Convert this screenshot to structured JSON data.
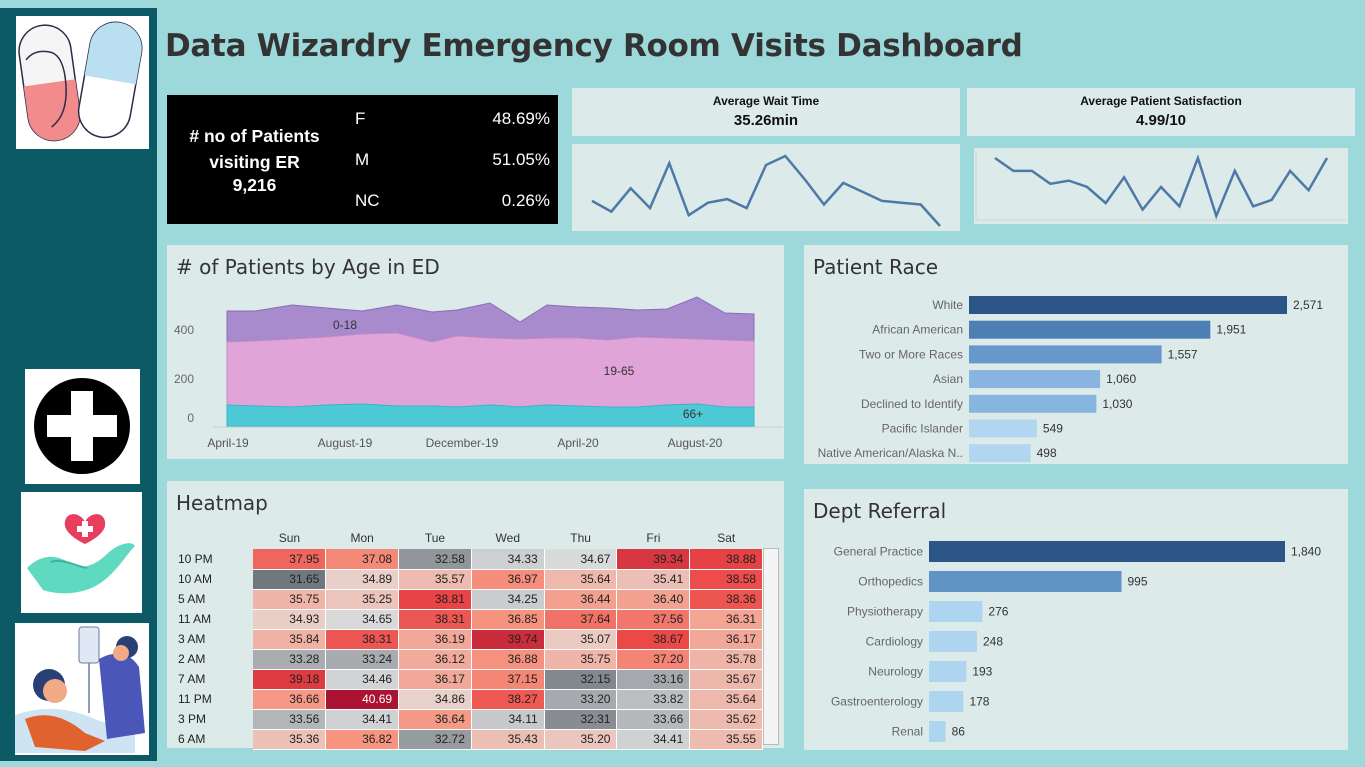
{
  "title": "Data Wizardry Emergency Room Visits Dashboard",
  "sidebar": {
    "icons": [
      "pill-capsule-icon",
      "medical-cross-icon",
      "heart-hand-icon",
      "patient-iv-icon"
    ]
  },
  "kpi": {
    "label_line1": "# no of Patients",
    "label_line2": "visiting ER",
    "value": "9,216",
    "genders": [
      {
        "code": "F",
        "pct": "48.69%"
      },
      {
        "code": "M",
        "pct": "51.05%"
      },
      {
        "code": "NC",
        "pct": "0.26%"
      }
    ]
  },
  "wait_time": {
    "label": "Average Wait Time",
    "value": "35.26min",
    "trend": [
      35.2,
      34.6,
      35.9,
      34.8,
      37.3,
      34.4,
      35.1,
      35.3,
      34.8,
      37.2,
      37.7,
      36.4,
      35.0,
      36.2,
      35.7,
      35.2,
      35.1,
      35.0,
      33.8
    ]
  },
  "satisfaction": {
    "label": "Average Patient Satisfaction",
    "value": "4.99/10",
    "trend": [
      5.3,
      5.1,
      5.1,
      4.9,
      4.95,
      4.85,
      4.6,
      5.0,
      4.5,
      4.85,
      4.55,
      5.3,
      4.4,
      5.1,
      4.55,
      4.65,
      5.1,
      4.8,
      5.3
    ]
  },
  "age_chart": {
    "title": "# of Patients by Age in ED",
    "y_ticks": [
      "400",
      "200",
      "0"
    ],
    "x_ticks": [
      "April-19",
      "August-19",
      "December-19",
      "April-20",
      "August-20"
    ],
    "series_labels": [
      "0-18",
      "19-65",
      "66+"
    ]
  },
  "race": {
    "title": "Patient Race",
    "items": [
      {
        "label": "White",
        "value": "2,571",
        "n": 2571,
        "color": "#2c5687"
      },
      {
        "label": "African American",
        "value": "1,951",
        "n": 1951,
        "color": "#4e7fb4"
      },
      {
        "label": "Two or More Races",
        "value": "1,557",
        "n": 1557,
        "color": "#6898cb"
      },
      {
        "label": "Asian",
        "value": "1,060",
        "n": 1060,
        "color": "#87b5df"
      },
      {
        "label": "Declined to Identify",
        "value": "1,030",
        "n": 1030,
        "color": "#87b5df"
      },
      {
        "label": "Pacific Islander",
        "value": "549",
        "n": 549,
        "color": "#b2d6ef"
      },
      {
        "label": "Native American/Alaska N..",
        "value": "498",
        "n": 498,
        "color": "#b2d6ef"
      }
    ]
  },
  "dept": {
    "title": "Dept Referral",
    "items": [
      {
        "label": "General Practice",
        "value": "1,840",
        "n": 1840,
        "color": "#2c5687"
      },
      {
        "label": "Orthopedics",
        "value": "995",
        "n": 995,
        "color": "#6193c6"
      },
      {
        "label": "Physiotherapy",
        "value": "276",
        "n": 276,
        "color": "#add5f0"
      },
      {
        "label": "Cardiology",
        "value": "248",
        "n": 248,
        "color": "#add5f0"
      },
      {
        "label": "Neurology",
        "value": "193",
        "n": 193,
        "color": "#add5f0"
      },
      {
        "label": "Gastroenterology",
        "value": "178",
        "n": 178,
        "color": "#add5f0"
      },
      {
        "label": "Renal",
        "value": "86",
        "n": 86,
        "color": "#add5f0"
      }
    ]
  },
  "heatmap": {
    "title": "Heatmap",
    "days": [
      "Sun",
      "Mon",
      "Tue",
      "Wed",
      "Thu",
      "Fri",
      "Sat"
    ],
    "rows": [
      {
        "label": "10 PM",
        "values": [
          "37.95",
          "37.08",
          "32.58",
          "34.33",
          "34.67",
          "39.34",
          "38.88"
        ]
      },
      {
        "label": "10 AM",
        "values": [
          "31.65",
          "34.89",
          "35.57",
          "36.97",
          "35.64",
          "35.41",
          "38.58"
        ]
      },
      {
        "label": "5 AM",
        "values": [
          "35.75",
          "35.25",
          "38.81",
          "34.25",
          "36.44",
          "36.40",
          "38.36"
        ]
      },
      {
        "label": "11 AM",
        "values": [
          "34.93",
          "34.65",
          "38.31",
          "36.85",
          "37.64",
          "37.56",
          "36.31"
        ]
      },
      {
        "label": "3 AM",
        "values": [
          "35.84",
          "38.31",
          "36.19",
          "39.74",
          "35.07",
          "38.67",
          "36.17"
        ]
      },
      {
        "label": "2 AM",
        "values": [
          "33.28",
          "33.24",
          "36.12",
          "36.88",
          "35.75",
          "37.20",
          "35.78"
        ]
      },
      {
        "label": "7 AM",
        "values": [
          "39.18",
          "34.46",
          "36.17",
          "37.15",
          "32.15",
          "33.16",
          "35.67"
        ]
      },
      {
        "label": "11 PM",
        "values": [
          "36.66",
          "40.69",
          "34.86",
          "38.27",
          "33.20",
          "33.82",
          "35.64"
        ]
      },
      {
        "label": "3 PM",
        "values": [
          "33.56",
          "34.41",
          "36.64",
          "34.11",
          "32.31",
          "33.66",
          "35.62"
        ]
      },
      {
        "label": "6 AM",
        "values": [
          "35.36",
          "36.82",
          "32.72",
          "35.43",
          "35.20",
          "34.41",
          "35.55"
        ]
      }
    ]
  }
}
